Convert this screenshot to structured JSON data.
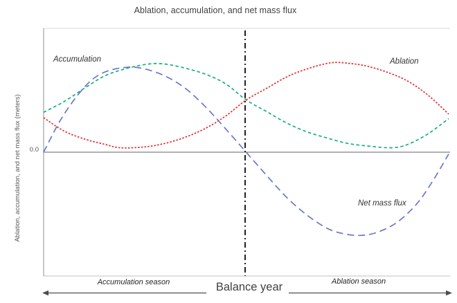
{
  "chart_data": {
    "type": "line",
    "title": "Ablation, accumulation, and net mass flux",
    "ylabel": "Ablation, accumulation, and net mass flux (meters)",
    "xlabel": "Balance year",
    "y_zero_tick": "0.0",
    "x_range": [
      0,
      1
    ],
    "ylim": [
      -1.4,
      1.4
    ],
    "grid": false,
    "legend_position": "inline-labels",
    "equilibrium_divider_x": 0.5,
    "divider_color": "#1f1f1f",
    "axis_color": "#8c8c8c",
    "border_color": "#d9d9d9",
    "arrow_color": "#4d4d4d",
    "series": [
      {
        "id": "accumulation",
        "name": "Accumulation",
        "color": "#12b277",
        "dash": "short",
        "points": [
          [
            0,
            0.45
          ],
          [
            0.05,
            0.57
          ],
          [
            0.1,
            0.72
          ],
          [
            0.15,
            0.86
          ],
          [
            0.2,
            0.94
          ],
          [
            0.25,
            0.99
          ],
          [
            0.29,
            1.0
          ],
          [
            0.34,
            0.96
          ],
          [
            0.4,
            0.88
          ],
          [
            0.45,
            0.77
          ],
          [
            0.5,
            0.59
          ],
          [
            0.55,
            0.46
          ],
          [
            0.6,
            0.33
          ],
          [
            0.65,
            0.23
          ],
          [
            0.7,
            0.16
          ],
          [
            0.75,
            0.1
          ],
          [
            0.8,
            0.07
          ],
          [
            0.86,
            0.05
          ],
          [
            0.9,
            0.09
          ],
          [
            0.95,
            0.21
          ],
          [
            1,
            0.38
          ]
        ]
      },
      {
        "id": "ablation",
        "name": "Ablation",
        "color": "#e8282d",
        "dash": "dotted",
        "points": [
          [
            0,
            0.39
          ],
          [
            0.05,
            0.24
          ],
          [
            0.1,
            0.15
          ],
          [
            0.15,
            0.09
          ],
          [
            0.19,
            0.05
          ],
          [
            0.25,
            0.06
          ],
          [
            0.3,
            0.1
          ],
          [
            0.35,
            0.17
          ],
          [
            0.4,
            0.27
          ],
          [
            0.45,
            0.41
          ],
          [
            0.5,
            0.59
          ],
          [
            0.55,
            0.72
          ],
          [
            0.6,
            0.85
          ],
          [
            0.65,
            0.94
          ],
          [
            0.71,
            1.01
          ],
          [
            0.76,
            1.0
          ],
          [
            0.8,
            0.97
          ],
          [
            0.85,
            0.9
          ],
          [
            0.9,
            0.8
          ],
          [
            0.95,
            0.64
          ],
          [
            1,
            0.43
          ]
        ]
      },
      {
        "id": "net-mass-flux",
        "name": "Net mass flux",
        "color": "#6a76c9",
        "dash": "long",
        "points": [
          [
            0,
            0
          ],
          [
            0.04,
            0.35
          ],
          [
            0.08,
            0.62
          ],
          [
            0.12,
            0.82
          ],
          [
            0.16,
            0.92
          ],
          [
            0.21,
            0.96
          ],
          [
            0.25,
            0.94
          ],
          [
            0.3,
            0.86
          ],
          [
            0.35,
            0.72
          ],
          [
            0.4,
            0.51
          ],
          [
            0.45,
            0.26
          ],
          [
            0.5,
            0
          ],
          [
            0.55,
            -0.26
          ],
          [
            0.6,
            -0.51
          ],
          [
            0.65,
            -0.71
          ],
          [
            0.7,
            -0.86
          ],
          [
            0.74,
            -0.92
          ],
          [
            0.78,
            -0.94
          ],
          [
            0.82,
            -0.91
          ],
          [
            0.87,
            -0.8
          ],
          [
            0.92,
            -0.59
          ],
          [
            0.96,
            -0.33
          ],
          [
            1,
            -0.02
          ]
        ]
      }
    ],
    "annotations": {
      "accumulation_season": "Accumulation season",
      "ablation_season": "Ablation season",
      "balance_year": "Balance year"
    }
  }
}
